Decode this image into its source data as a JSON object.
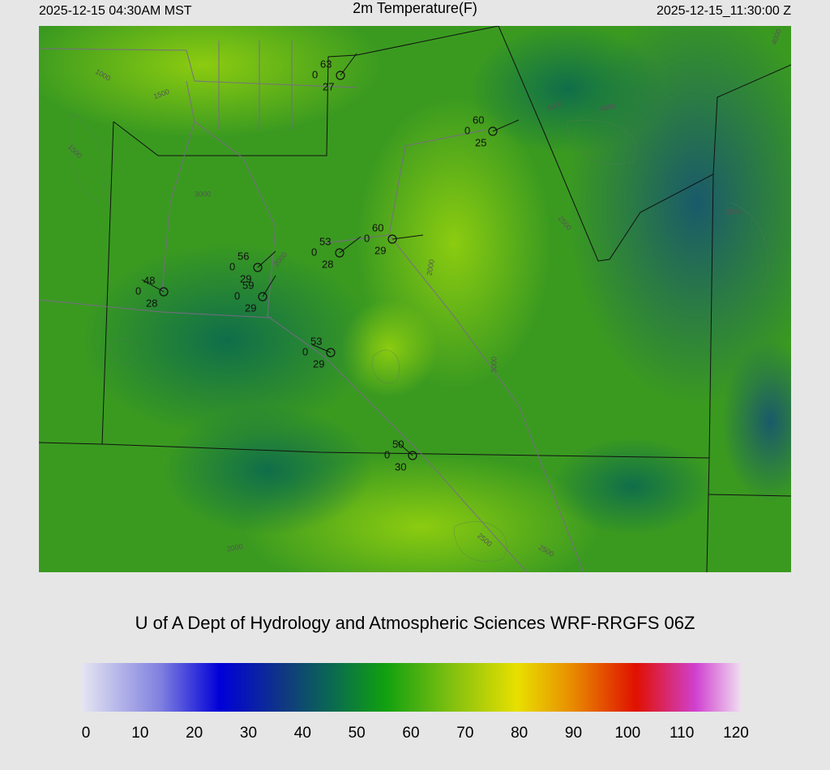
{
  "header": {
    "left": "2025-12-15 04:30AM MST",
    "title": "2m Temperature(F)",
    "right": "2025-12-15_11:30:00 Z"
  },
  "stations": [
    {
      "temperature": 63,
      "code": 0,
      "dewpoint": 27
    },
    {
      "temperature": 60,
      "code": 0,
      "dewpoint": 25
    },
    {
      "temperature": 60,
      "code": 0,
      "dewpoint": 29
    },
    {
      "temperature": 53,
      "code": 0,
      "dewpoint": 28
    },
    {
      "temperature": 56,
      "code": 0,
      "dewpoint": 29
    },
    {
      "temperature": 59,
      "code": 0,
      "dewpoint": 29
    },
    {
      "temperature": 48,
      "code": 0,
      "dewpoint": 28
    },
    {
      "temperature": 53,
      "code": 0,
      "dewpoint": 29
    },
    {
      "temperature": 50,
      "code": 0,
      "dewpoint": 30
    }
  ],
  "contour_labels": [
    "1000",
    "1500",
    "1500",
    "2000",
    "2000",
    "2500",
    "3000",
    "3500",
    "4000",
    "4000",
    "4500",
    "2500",
    "2500",
    "2000",
    "3000"
  ],
  "footer": "U of A Dept of Hydrology and Atmospheric Sciences WRF-RRGFS 06Z",
  "colorbar": {
    "lim": [
      0,
      120
    ],
    "ticks": [
      0,
      10,
      20,
      30,
      40,
      50,
      60,
      70,
      80,
      90,
      100,
      110,
      120
    ]
  }
}
